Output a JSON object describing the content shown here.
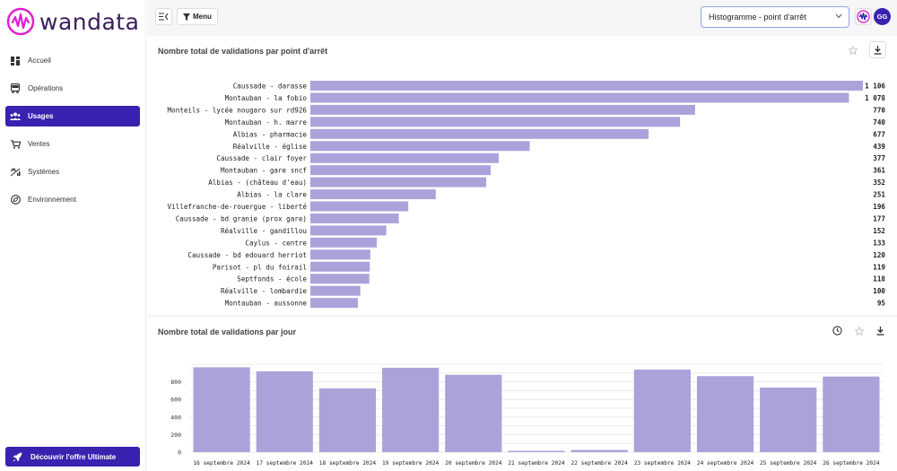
{
  "app": {
    "logo_text": "wandata",
    "brand_color": "#e020d0",
    "accent_color": "#3b21b0",
    "bar_color": "#aaa3da"
  },
  "sidebar": {
    "items": [
      {
        "label": "Accueil",
        "icon": "dashboard-icon",
        "active": false
      },
      {
        "label": "Opérations",
        "icon": "bus-icon",
        "active": false
      },
      {
        "label": "Usages",
        "icon": "users-icon",
        "active": true
      },
      {
        "label": "Ventes",
        "icon": "cart-icon",
        "active": false
      },
      {
        "label": "Systèmes",
        "icon": "signal-icon",
        "active": false
      },
      {
        "label": "Environnement",
        "icon": "eco-icon",
        "active": false
      }
    ],
    "promo_label": "Découvrir l'offre Ultimate",
    "promo_icon": "rocket-icon"
  },
  "topbar": {
    "collapse_icon": "collapse-sidebar-icon",
    "menu_label": "Menu",
    "menu_icon": "filter-icon",
    "chart_select_value": "Histogramme - point d'arrêt",
    "user_initials": "GG"
  },
  "card1": {
    "title": "Nombre total de validations par point d'arrêt"
  },
  "card2": {
    "title": "Nombre total de validations par jour"
  },
  "chart_data": [
    {
      "type": "bar",
      "orientation": "horizontal",
      "title": "Nombre total de validations par point d'arrêt",
      "categories": [
        "Caussade - darasse",
        "Montauban - la fobio",
        "Monteils - lycée nougaro sur rd926",
        "Montauban - h. marre",
        "Albias - pharmacie",
        "Réalville - église",
        "Caussade - clair foyer",
        "Montauban - gare sncf",
        "Albias - (château d'eau)",
        "Albias - la clare",
        "Villefranche-de-rouergue - liberté",
        "Caussade - bd granie (prox gare)",
        "Réalville - gandillou",
        "Caylus - centre",
        "Caussade - bd edouard herriot",
        "Parisot - pl du foirail",
        "Septfonds - école",
        "Réalville - lombardie",
        "Montauban - aussonne"
      ],
      "values": [
        1106,
        1078,
        770,
        740,
        677,
        439,
        377,
        361,
        352,
        251,
        196,
        177,
        152,
        133,
        120,
        119,
        118,
        100,
        95
      ],
      "value_labels": [
        "1 106",
        "1 078",
        "770",
        "740",
        "677",
        "439",
        "377",
        "361",
        "352",
        "251",
        "196",
        "177",
        "152",
        "133",
        "120",
        "119",
        "118",
        "100",
        "95"
      ],
      "xlim": [
        0,
        1106
      ]
    },
    {
      "type": "bar",
      "title": "Nombre total de validations par jour",
      "categories": [
        "16 septembre 2024",
        "17 septembre 2024",
        "18 septembre 2024",
        "19 septembre 2024",
        "20 septembre 2024",
        "21 septembre 2024",
        "22 septembre 2024",
        "23 septembre 2024",
        "24 septembre 2024",
        "25 septembre 2024",
        "26 septembre 2024"
      ],
      "values": [
        965,
        920,
        725,
        960,
        880,
        15,
        25,
        940,
        865,
        735,
        860
      ],
      "yticks": [
        0,
        200,
        400,
        600,
        800
      ],
      "ylim": [
        0,
        1000
      ],
      "grid": true
    }
  ]
}
